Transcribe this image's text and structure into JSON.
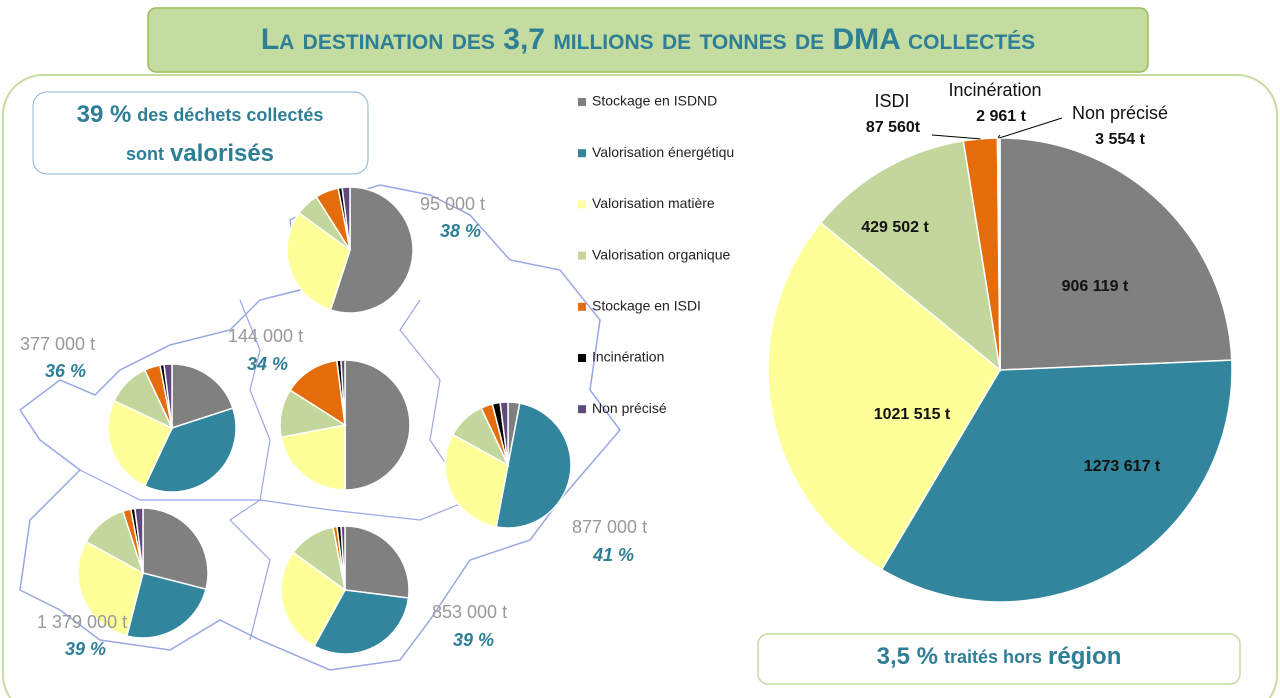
{
  "header": {
    "title": "La destination des 3,7 millions de tonnes de DMA collectés"
  },
  "callout_top": {
    "highlight": "39 %",
    "text": "des déchets collectés",
    "text2": "sont",
    "strong": "valorisés"
  },
  "callout_bottom": {
    "highlight": "3,5 %",
    "text": "traités hors",
    "strong": "région"
  },
  "chart_data": [
    {
      "type": "pie",
      "categories": [
        "Stockage en ISDND",
        "Valorisation énergétiqu",
        "Valorisation matière",
        "Valorisation organique",
        "Stockage en ISDI",
        "Incinération",
        "Non précisé"
      ],
      "colors": [
        "#808080",
        "#31859c",
        "#ffff99",
        "#c3d69b",
        "#e46c0a",
        "#000000",
        "#604a7b"
      ],
      "values": [
        906119,
        1273617,
        1021515,
        429502,
        87560,
        2961,
        3554
      ],
      "value_labels": [
        "906 119 t",
        "1273 617 t",
        "1021 515 t",
        "429 502 t",
        "87 560t",
        "2 961 t",
        "3 554 t"
      ],
      "callouts": [
        "ISDI",
        "Incinération",
        "Non précisé"
      ],
      "legend": "center"
    },
    {
      "type": "pie",
      "title": "95 000  t",
      "subtitle": "38 %",
      "values": [
        55,
        0,
        30,
        6,
        6,
        1,
        2
      ]
    },
    {
      "type": "pie",
      "title": "377 000 t",
      "subtitle": "36 %",
      "values": [
        20,
        37,
        25,
        11,
        4,
        1,
        2
      ]
    },
    {
      "type": "pie",
      "title": "144 000 t",
      "subtitle": "34 %",
      "values": [
        50,
        0,
        22,
        12,
        14,
        1,
        1
      ]
    },
    {
      "type": "pie",
      "title": "877 000 t",
      "subtitle": "41 %",
      "values": [
        3,
        50,
        30,
        10,
        3,
        2,
        2
      ]
    },
    {
      "type": "pie",
      "title": "1 379 000 t",
      "subtitle": "39 %",
      "values": [
        29,
        25,
        29,
        12,
        2,
        1,
        2
      ]
    },
    {
      "type": "pie",
      "title": "853 000 t",
      "subtitle": "39 %",
      "values": [
        27,
        31,
        27,
        12,
        1,
        1,
        1
      ]
    }
  ]
}
